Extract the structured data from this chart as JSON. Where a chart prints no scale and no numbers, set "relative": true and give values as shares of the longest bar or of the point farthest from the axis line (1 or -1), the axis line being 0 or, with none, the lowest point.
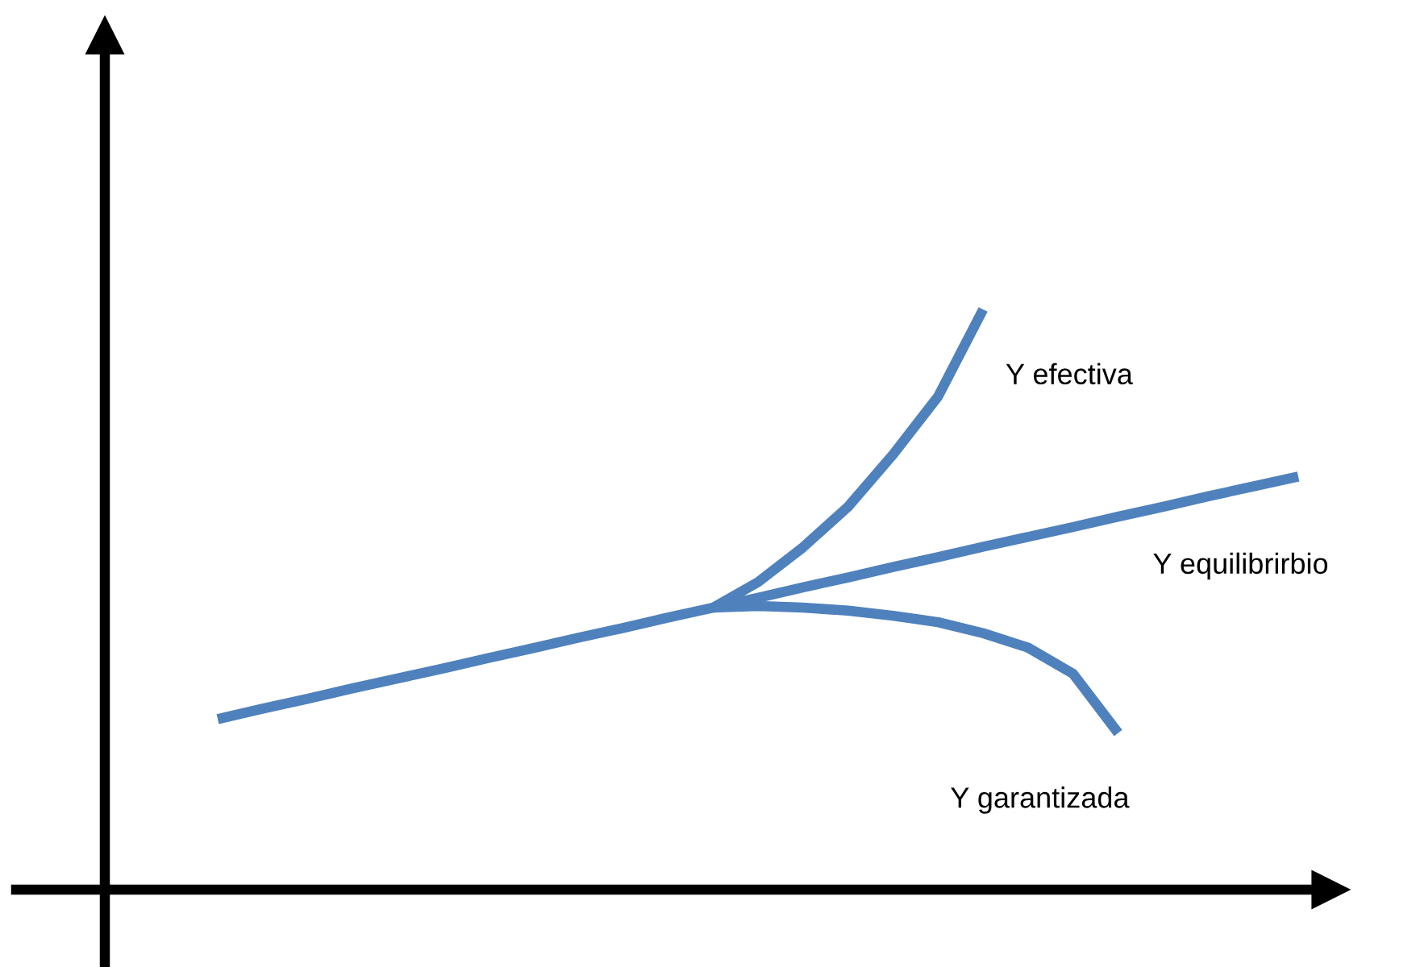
{
  "chart_data": {
    "type": "line",
    "relative": true,
    "categories": [
      null,
      null,
      null,
      null,
      null,
      null,
      null,
      null,
      null,
      null,
      null,
      null,
      null,
      null,
      null,
      null,
      null,
      null,
      null,
      null,
      null,
      null,
      null,
      null,
      null
    ],
    "series": [
      {
        "name": "Y efectiva",
        "color": "#4f81bd",
        "values": [
          null,
          null,
          null,
          null,
          null,
          null,
          null,
          null,
          null,
          null,
          null,
          0.486,
          0.53,
          0.59,
          0.66,
          0.75,
          0.85,
          1.0,
          null,
          null,
          null,
          null,
          null,
          null,
          null
        ]
      },
      {
        "name": "Y equilibrirbio",
        "color": "#4f81bd",
        "values": [
          0.294,
          0.312,
          0.329,
          0.347,
          0.364,
          0.381,
          0.399,
          0.416,
          0.434,
          0.451,
          0.469,
          0.486,
          0.503,
          0.521,
          0.538,
          0.556,
          0.573,
          0.591,
          0.608,
          0.625,
          0.643,
          0.66,
          0.678,
          0.695,
          0.712
        ]
      },
      {
        "name": "Y garantizada",
        "color": "#4f81bd",
        "values": [
          null,
          null,
          null,
          null,
          null,
          null,
          null,
          null,
          null,
          null,
          null,
          0.486,
          0.489,
          0.486,
          0.481,
          0.472,
          0.461,
          0.442,
          0.417,
          0.372,
          0.27,
          null,
          null,
          null,
          null
        ]
      }
    ]
  }
}
